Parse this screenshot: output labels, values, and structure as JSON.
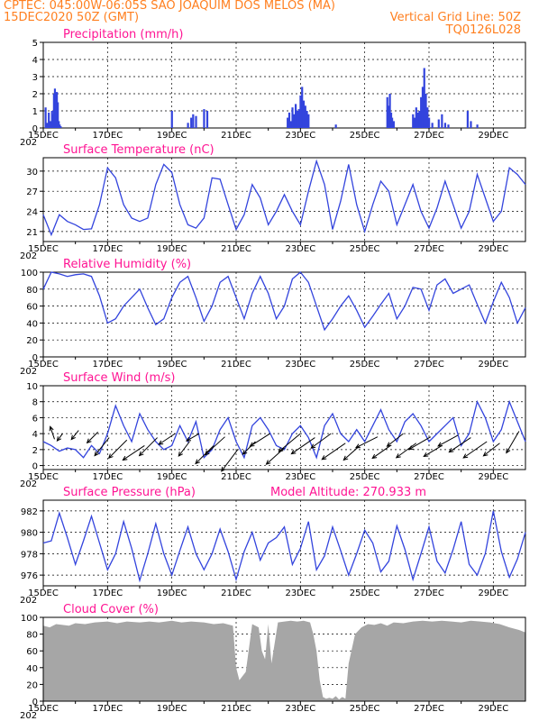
{
  "header": {
    "line1_left": "CPTEC:   045:00W-06:05S  SAO JOAQUIM DOS MELOS (MA)",
    "line2_left": "15DEC2020 50Z (GMT)",
    "line2_right": "Vertical Grid Line: 50Z",
    "line3_right": "TQ0126L028"
  },
  "colors": {
    "header": "#ff7f1f",
    "title": "#ff1493",
    "line": "#3344dd",
    "cloud": "#a6a6a6"
  },
  "x_axis": {
    "labels": [
      "15DEC",
      "17DEC",
      "19DEC",
      "21DEC",
      "23DEC",
      "25DEC",
      "27DEC",
      "29DEC"
    ],
    "label_days": [
      0,
      2,
      4,
      6,
      8,
      10,
      12,
      14
    ],
    "partial_year_label": "202",
    "days_span": 15
  },
  "chart_data": [
    {
      "type": "bar",
      "title": "Precipitation (mm/h)",
      "ylim": [
        0,
        5
      ],
      "yticks": [
        0,
        1,
        2,
        3,
        4,
        5
      ],
      "grid": true,
      "x": [
        0.07,
        0.12,
        0.17,
        0.22,
        0.27,
        0.3,
        0.33,
        0.36,
        0.39,
        0.42,
        0.45,
        0.48,
        0.51,
        0.54,
        4.0,
        4.5,
        4.6,
        4.66,
        4.75,
        5.0,
        5.1,
        7.6,
        7.65,
        7.7,
        7.75,
        7.8,
        7.85,
        7.9,
        7.95,
        8.0,
        8.05,
        8.1,
        8.15,
        8.2,
        8.25,
        9.1,
        10.7,
        10.75,
        10.78,
        10.82,
        10.85,
        10.9,
        11.5,
        11.55,
        11.6,
        11.65,
        11.7,
        11.75,
        11.8,
        11.85,
        11.9,
        11.95,
        12.0,
        12.1,
        12.3,
        12.4,
        12.5,
        12.6,
        13.2,
        13.3,
        13.5
      ],
      "values": [
        1.2,
        0.3,
        0.9,
        0.4,
        1.0,
        0.8,
        2.0,
        2.3,
        1.9,
        2.1,
        1.5,
        0.4,
        0.2,
        0.1,
        1.0,
        0.3,
        0.6,
        0.8,
        0.7,
        1.1,
        1.0,
        0.6,
        0.9,
        0.4,
        1.2,
        0.8,
        1.4,
        1.0,
        1.1,
        1.9,
        2.4,
        1.6,
        1.3,
        1.0,
        0.8,
        0.2,
        1.8,
        1.3,
        2.0,
        0.9,
        0.6,
        0.4,
        0.8,
        0.6,
        1.2,
        0.9,
        1.0,
        1.8,
        2.4,
        3.5,
        2.0,
        1.2,
        0.6,
        0.3,
        0.5,
        0.8,
        0.3,
        0.2,
        1.0,
        0.4,
        0.2
      ]
    },
    {
      "type": "line",
      "title": "Surface Temperature (nC)",
      "ylim": [
        19.5,
        32
      ],
      "yticks": [
        21,
        24,
        27,
        30
      ],
      "grid": true,
      "x": [
        0,
        0.25,
        0.5,
        0.75,
        1.0,
        1.25,
        1.5,
        1.75,
        2.0,
        2.25,
        2.5,
        2.75,
        3.0,
        3.25,
        3.5,
        3.75,
        4.0,
        4.25,
        4.5,
        4.75,
        5.0,
        5.25,
        5.5,
        5.75,
        6.0,
        6.25,
        6.5,
        6.75,
        7.0,
        7.25,
        7.5,
        7.75,
        8.0,
        8.25,
        8.5,
        8.75,
        9.0,
        9.25,
        9.5,
        9.75,
        10.0,
        10.25,
        10.5,
        10.75,
        11.0,
        11.25,
        11.5,
        11.75,
        12.0,
        12.25,
        12.5,
        12.75,
        13.0,
        13.25,
        13.5,
        13.75,
        14.0,
        14.25,
        14.5,
        14.75,
        15.0
      ],
      "values": [
        23.5,
        20.5,
        23.5,
        22.5,
        22.0,
        21.3,
        21.4,
        25.0,
        30.5,
        29.0,
        25.0,
        23.0,
        22.5,
        23.0,
        28.0,
        31.0,
        29.8,
        25.0,
        22.0,
        21.5,
        23.0,
        29.0,
        28.8,
        25.0,
        21.3,
        23.5,
        28.0,
        26.0,
        22.0,
        24.0,
        26.5,
        24.0,
        22.0,
        27.0,
        31.5,
        28.0,
        21.3,
        25.5,
        31.0,
        25.0,
        21.0,
        25.0,
        28.5,
        27.0,
        22.0,
        25.0,
        28.0,
        24.0,
        21.5,
        24.5,
        28.5,
        25.0,
        21.5,
        24.0,
        29.5,
        26.0,
        22.5,
        24.0,
        30.5,
        29.5,
        28.0
      ]
    },
    {
      "type": "line",
      "title": "Relative Humidity (%)",
      "ylim": [
        0,
        100
      ],
      "yticks": [
        0,
        20,
        40,
        60,
        80,
        100
      ],
      "grid": true,
      "x": [
        0,
        0.25,
        0.5,
        0.75,
        1.0,
        1.25,
        1.5,
        1.75,
        2.0,
        2.25,
        2.5,
        2.75,
        3.0,
        3.25,
        3.5,
        3.75,
        4.0,
        4.25,
        4.5,
        4.75,
        5.0,
        5.25,
        5.5,
        5.75,
        6.0,
        6.25,
        6.5,
        6.75,
        7.0,
        7.25,
        7.5,
        7.75,
        8.0,
        8.25,
        8.5,
        8.75,
        9.0,
        9.25,
        9.5,
        9.75,
        10.0,
        10.25,
        10.5,
        10.75,
        11.0,
        11.25,
        11.5,
        11.75,
        12.0,
        12.25,
        12.5,
        12.75,
        13.0,
        13.25,
        13.5,
        13.75,
        14.0,
        14.25,
        14.5,
        14.75,
        15.0
      ],
      "values": [
        80,
        100,
        98,
        95,
        97,
        98,
        95,
        72,
        40,
        45,
        60,
        70,
        80,
        58,
        38,
        45,
        70,
        88,
        95,
        70,
        42,
        60,
        88,
        95,
        70,
        45,
        75,
        95,
        75,
        45,
        60,
        92,
        100,
        88,
        60,
        32,
        45,
        60,
        72,
        55,
        35,
        48,
        62,
        75,
        45,
        60,
        82,
        80,
        55,
        85,
        92,
        75,
        80,
        85,
        62,
        40,
        65,
        88,
        70,
        40,
        58
      ]
    },
    {
      "type": "line",
      "title": "Surface Wind (m/s)",
      "ylim": [
        -0.5,
        10
      ],
      "yticks": [
        0,
        2,
        4,
        6,
        8,
        10
      ],
      "grid": true,
      "x": [
        0,
        0.25,
        0.5,
        0.75,
        1.0,
        1.25,
        1.5,
        1.75,
        2.0,
        2.25,
        2.5,
        2.75,
        3.0,
        3.25,
        3.5,
        3.75,
        4.0,
        4.25,
        4.5,
        4.75,
        5.0,
        5.25,
        5.5,
        5.75,
        6.0,
        6.25,
        6.5,
        6.75,
        7.0,
        7.25,
        7.5,
        7.75,
        8.0,
        8.25,
        8.5,
        8.75,
        9.0,
        9.25,
        9.5,
        9.75,
        10.0,
        10.25,
        10.5,
        10.75,
        11.0,
        11.25,
        11.5,
        11.75,
        12.0,
        12.25,
        12.5,
        12.75,
        13.0,
        13.25,
        13.5,
        13.75,
        14.0,
        14.25,
        14.5,
        14.75,
        15.0
      ],
      "values": [
        3.0,
        2.5,
        1.8,
        2.2,
        2.0,
        1.0,
        2.5,
        1.5,
        4.0,
        7.5,
        5.0,
        3.0,
        6.5,
        4.5,
        3.0,
        2.0,
        2.5,
        5.0,
        3.0,
        5.5,
        1.0,
        2.0,
        4.5,
        6.0,
        3.0,
        1.0,
        5.0,
        6.0,
        4.5,
        2.5,
        2.0,
        4.0,
        5.0,
        3.5,
        1.0,
        5.0,
        6.5,
        4.0,
        3.0,
        4.5,
        3.0,
        5.0,
        7.0,
        4.5,
        3.0,
        5.5,
        6.5,
        5.0,
        3.0,
        4.0,
        5.0,
        6.0,
        2.5,
        4.0,
        8.0,
        6.0,
        3.0,
        4.5,
        8.0,
        5.5,
        3.0
      ],
      "arrows_x": [
        0.35,
        0.6,
        1.1,
        1.7,
        2.05,
        2.6,
        3.15,
        3.55,
        4.1,
        4.55,
        4.85,
        5.3,
        5.65,
        6.05,
        6.6,
        7.05,
        7.5,
        8.0,
        8.45,
        8.95,
        9.4,
        9.85,
        10.4,
        10.8,
        11.2,
        11.6,
        12.05,
        12.4,
        12.9,
        13.3,
        13.8,
        14.2,
        14.8
      ],
      "arrows_y": [
        3.3,
        4.0,
        4.4,
        4.2,
        3.5,
        3.2,
        2.5,
        3.5,
        4.0,
        3.0,
        4.0,
        2.5,
        3.6,
        2.0,
        3.0,
        4.0,
        2.2,
        4.0,
        3.5,
        4.0,
        2.8,
        2.5,
        3.6,
        2.5,
        4.0,
        2.8,
        3.6,
        2.5,
        3.8,
        3.5,
        3.0,
        2.8,
        4.3
      ],
      "arrows_u": [
        -0.12,
        -0.15,
        -0.2,
        -0.3,
        -0.4,
        -0.5,
        -0.6,
        -0.5,
        -0.45,
        -0.3,
        -0.35,
        -0.5,
        -0.55,
        -0.45,
        -0.35,
        -0.55,
        -0.5,
        -0.6,
        -0.65,
        -0.55,
        -0.65,
        -0.45,
        -0.6,
        -0.5,
        -0.45,
        -0.55,
        -0.6,
        -0.5,
        -0.55,
        -0.6,
        -0.65,
        -0.45,
        -0.35
      ],
      "arrows_v": [
        0.35,
        -0.2,
        -0.25,
        -0.3,
        -0.5,
        -0.5,
        -0.4,
        -0.5,
        -0.3,
        -0.4,
        -0.2,
        -0.5,
        -0.5,
        -0.6,
        -0.35,
        -0.35,
        -0.45,
        -0.5,
        -0.45,
        -0.4,
        -0.45,
        -0.4,
        -0.3,
        -0.35,
        -0.35,
        -0.4,
        -0.35,
        -0.3,
        -0.3,
        -0.4,
        -0.45,
        -0.35,
        -0.6
      ]
    },
    {
      "type": "line",
      "title": "Surface Pressure (hPa)",
      "annotation": "Model Altitude: 270.933 m",
      "ylim": [
        975,
        983
      ],
      "yticks": [
        976,
        978,
        980,
        982
      ],
      "grid": true,
      "x": [
        0,
        0.25,
        0.5,
        0.75,
        1.0,
        1.25,
        1.5,
        1.75,
        2.0,
        2.25,
        2.5,
        2.75,
        3.0,
        3.25,
        3.5,
        3.75,
        4.0,
        4.25,
        4.5,
        4.75,
        5.0,
        5.25,
        5.5,
        5.75,
        6.0,
        6.25,
        6.5,
        6.75,
        7.0,
        7.25,
        7.5,
        7.75,
        8.0,
        8.25,
        8.5,
        8.75,
        9.0,
        9.25,
        9.5,
        9.75,
        10.0,
        10.25,
        10.5,
        10.75,
        11.0,
        11.25,
        11.5,
        11.75,
        12.0,
        12.25,
        12.5,
        12.75,
        13.0,
        13.25,
        13.5,
        13.75,
        14.0,
        14.25,
        14.5,
        14.75,
        15.0
      ],
      "values": [
        979.0,
        979.2,
        981.8,
        979.5,
        977.0,
        979.2,
        981.5,
        979.0,
        976.5,
        978.0,
        981.0,
        978.5,
        975.5,
        978.0,
        980.8,
        978.0,
        976.0,
        978.3,
        980.5,
        978.0,
        976.5,
        978.0,
        980.3,
        978.2,
        975.6,
        978.2,
        980.0,
        977.4,
        979.0,
        979.5,
        980.5,
        977.0,
        978.5,
        981.0,
        976.5,
        977.8,
        980.5,
        978.3,
        976.0,
        978.0,
        980.2,
        979.0,
        976.3,
        977.3,
        980.6,
        978.4,
        975.6,
        978.0,
        980.5,
        977.3,
        976.2,
        978.4,
        981.0,
        977.0,
        976.0,
        978.0,
        982.0,
        978.2,
        975.8,
        977.5,
        980.0
      ]
    },
    {
      "type": "area",
      "title": "Cloud Cover (%)",
      "ylim": [
        0,
        100
      ],
      "yticks": [
        0,
        20,
        40,
        60,
        80,
        100
      ],
      "grid": true,
      "x": [
        0,
        0.2,
        0.4,
        0.6,
        0.8,
        1.0,
        1.3,
        1.6,
        2.0,
        2.3,
        2.6,
        3.0,
        3.3,
        3.6,
        4.0,
        4.3,
        4.6,
        5.0,
        5.3,
        5.6,
        5.9,
        6.0,
        6.1,
        6.3,
        6.5,
        6.7,
        6.8,
        6.9,
        7.0,
        7.1,
        7.3,
        7.5,
        7.7,
        7.9,
        8.1,
        8.3,
        8.4,
        8.5,
        8.6,
        8.7,
        8.8,
        8.9,
        9.0,
        9.1,
        9.2,
        9.3,
        9.4,
        9.5,
        9.7,
        9.9,
        10.1,
        10.3,
        10.5,
        10.7,
        10.9,
        11.2,
        11.5,
        11.8,
        12.1,
        12.4,
        12.7,
        13.0,
        13.3,
        13.6,
        13.9,
        14.2,
        14.5,
        14.8,
        15.0
      ],
      "values": [
        90,
        88,
        92,
        91,
        90,
        93,
        92,
        94,
        95,
        93,
        95,
        94,
        95,
        94,
        96,
        94,
        95,
        94,
        92,
        93,
        90,
        40,
        25,
        35,
        92,
        88,
        60,
        50,
        92,
        45,
        94,
        95,
        96,
        95,
        96,
        94,
        80,
        60,
        25,
        5,
        3,
        4,
        3,
        6,
        2,
        5,
        3,
        45,
        80,
        88,
        92,
        91,
        93,
        90,
        94,
        93,
        95,
        96,
        95,
        96,
        95,
        94,
        96,
        95,
        94,
        92,
        88,
        85,
        82
      ]
    }
  ]
}
